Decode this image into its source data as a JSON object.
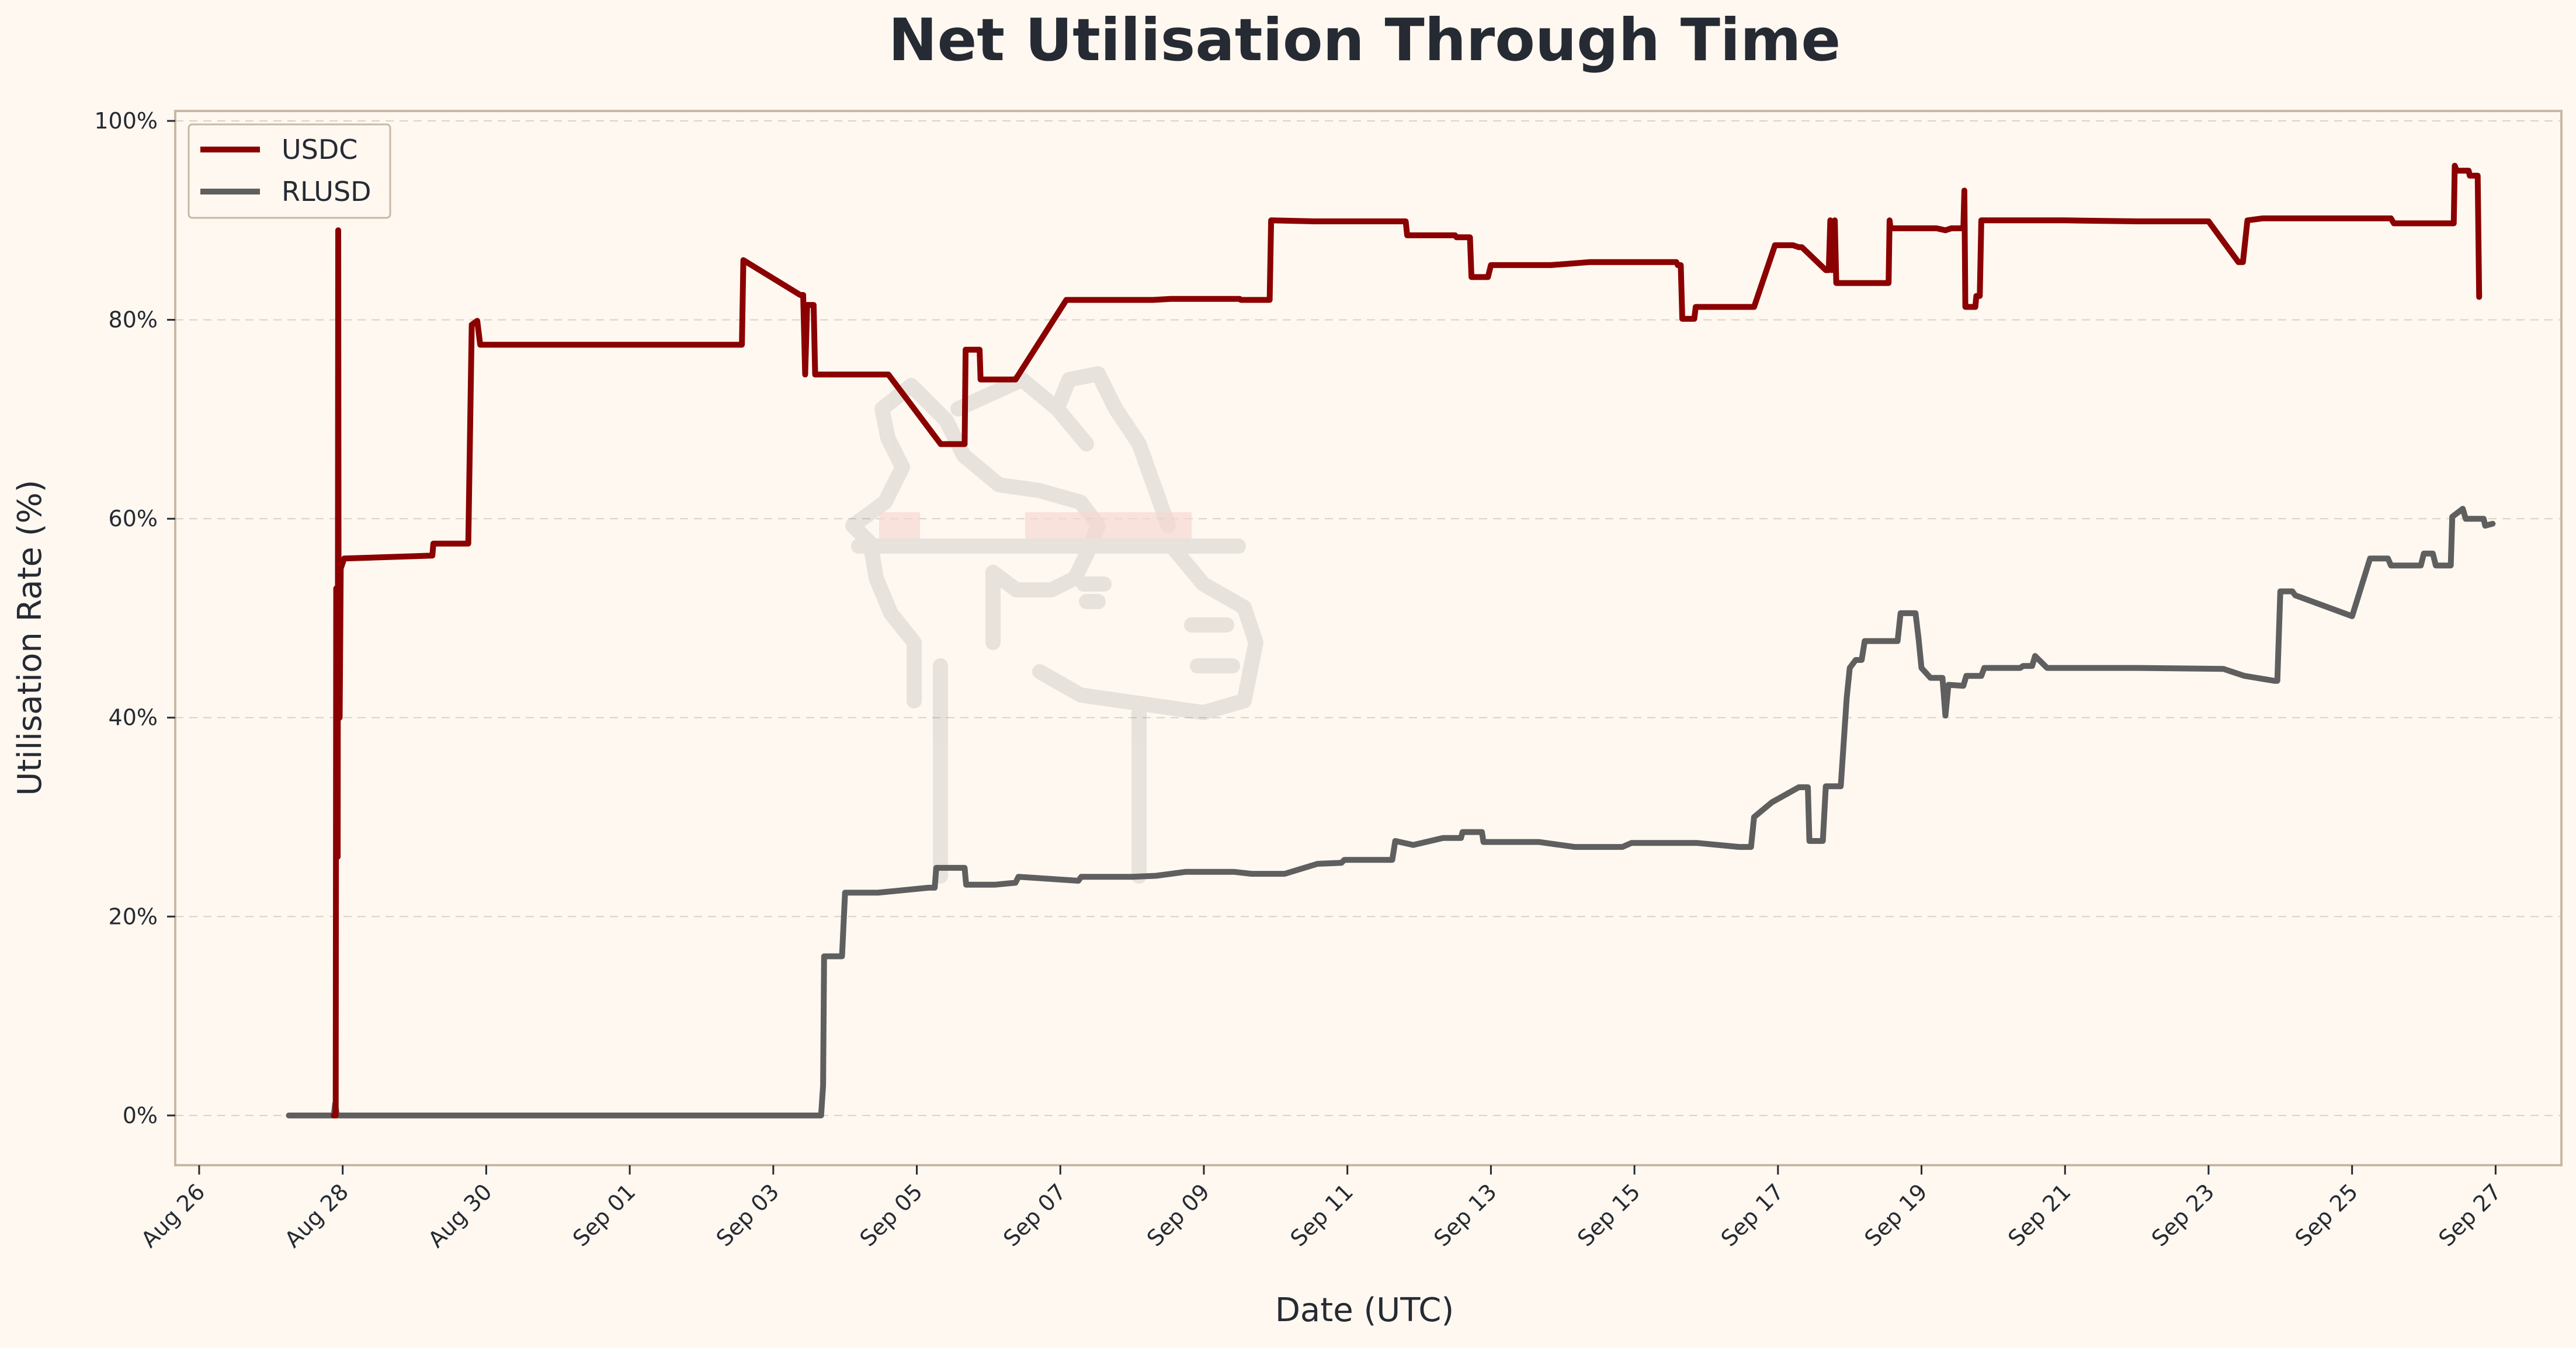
{
  "chart_data": {
    "type": "line",
    "title": "Net Utilisation Through Time",
    "xlabel": "Date (UTC)",
    "ylabel": "Utilisation Rate (%)",
    "ylim": [
      -5,
      101
    ],
    "xlim": [
      "2025-08-25T16:00",
      "2025-09-27T22:00"
    ],
    "x_ticks": [
      "Aug 26",
      "Aug 28",
      "Aug 30",
      "Sep 01",
      "Sep 03",
      "Sep 05",
      "Sep 07",
      "Sep 09",
      "Sep 11",
      "Sep 13",
      "Sep 15",
      "Sep 17",
      "Sep 19",
      "Sep 21",
      "Sep 23",
      "Sep 25",
      "Sep 27"
    ],
    "y_ticks": [
      "0%",
      "20%",
      "40%",
      "60%",
      "80%",
      "100%"
    ],
    "grid": "horizontal dashed",
    "legend_position": "top-left",
    "colors": {
      "background": "#FEF8F0",
      "frame": "#c8b8a4"
    },
    "series": [
      {
        "name": "USDC",
        "color": "#8B0000",
        "points": [
          [
            "2025-08-27T21:00",
            0
          ],
          [
            "2025-08-27T21:40",
            0
          ],
          [
            "2025-08-27T21:50",
            53
          ],
          [
            "2025-08-27T22:00",
            52
          ],
          [
            "2025-08-27T22:10",
            27
          ],
          [
            "2025-08-27T22:20",
            26
          ],
          [
            "2025-08-27T22:30",
            89
          ],
          [
            "2025-08-27T22:40",
            40
          ],
          [
            "2025-08-27T23:00",
            40
          ],
          [
            "2025-08-27T23:20",
            55
          ],
          [
            "2025-08-28T00:30",
            56
          ],
          [
            "2025-08-29T06:00",
            56.3
          ],
          [
            "2025-08-29T06:20",
            57.5
          ],
          [
            "2025-08-29T18:00",
            57.5
          ],
          [
            "2025-08-29T19:10",
            79.5
          ],
          [
            "2025-08-29T21:00",
            79.9
          ],
          [
            "2025-08-29T22:00",
            77.5
          ],
          [
            "2025-09-02T13:30",
            77.5
          ],
          [
            "2025-09-02T14:00",
            86
          ],
          [
            "2025-09-03T09:00",
            82.5
          ],
          [
            "2025-09-03T10:00",
            82.5
          ],
          [
            "2025-09-03T10:40",
            74.5
          ],
          [
            "2025-09-03T11:20",
            81.5
          ],
          [
            "2025-09-03T13:30",
            81.5
          ],
          [
            "2025-09-03T14:00",
            74.5
          ],
          [
            "2025-09-04T14:30",
            74.5
          ],
          [
            "2025-09-05T08:00",
            67.5
          ],
          [
            "2025-09-05T16:00",
            67.5
          ],
          [
            "2025-09-05T16:20",
            77
          ],
          [
            "2025-09-05T21:00",
            77
          ],
          [
            "2025-09-05T21:20",
            74
          ],
          [
            "2025-09-06T09:00",
            74
          ],
          [
            "2025-09-07T02:00",
            82
          ],
          [
            "2025-09-08T07:00",
            82
          ],
          [
            "2025-09-08T13:00",
            82.1
          ],
          [
            "2025-09-09T12:00",
            82.1
          ],
          [
            "2025-09-09T12:20",
            82
          ],
          [
            "2025-09-09T22:00",
            82
          ],
          [
            "2025-09-09T22:30",
            90
          ],
          [
            "2025-09-10T13:00",
            89.9
          ],
          [
            "2025-09-11T19:30",
            89.9
          ],
          [
            "2025-09-11T20:00",
            88.5
          ],
          [
            "2025-09-12T12:00",
            88.5
          ],
          [
            "2025-09-12T12:30",
            88.3
          ],
          [
            "2025-09-12T17:00",
            88.3
          ],
          [
            "2025-09-12T17:30",
            84.3
          ],
          [
            "2025-09-12T23:00",
            84.3
          ],
          [
            "2025-09-13T00:00",
            85.5
          ],
          [
            "2025-09-13T20:00",
            85.5
          ],
          [
            "2025-09-14T09:00",
            85.8
          ],
          [
            "2025-09-15T14:00",
            85.8
          ],
          [
            "2025-09-15T14:30",
            85.5
          ],
          [
            "2025-09-15T15:30",
            85.5
          ],
          [
            "2025-09-15T16:00",
            80.1
          ],
          [
            "2025-09-15T20:00",
            80.1
          ],
          [
            "2025-09-15T20:30",
            81.3
          ],
          [
            "2025-09-16T16:00",
            81.3
          ],
          [
            "2025-09-16T23:00",
            87.5
          ],
          [
            "2025-09-17T05:00",
            87.5
          ],
          [
            "2025-09-17T07:00",
            87.3
          ],
          [
            "2025-09-17T08:00",
            87.3
          ],
          [
            "2025-09-17T16:00",
            85
          ],
          [
            "2025-09-17T17:00",
            85
          ],
          [
            "2025-09-17T17:30",
            90
          ],
          [
            "2025-09-17T18:00",
            85
          ],
          [
            "2025-09-17T19:00",
            90
          ],
          [
            "2025-09-17T19:30",
            83.7
          ],
          [
            "2025-09-18T13:00",
            83.7
          ],
          [
            "2025-09-18T13:20",
            90
          ],
          [
            "2025-09-18T13:40",
            89.2
          ],
          [
            "2025-09-19T05:00",
            89.2
          ],
          [
            "2025-09-19T08:00",
            89
          ],
          [
            "2025-09-19T10:00",
            89.2
          ],
          [
            "2025-09-19T14:00",
            89.2
          ],
          [
            "2025-09-19T14:20",
            93
          ],
          [
            "2025-09-19T14:40",
            81.3
          ],
          [
            "2025-09-19T18:00",
            81.3
          ],
          [
            "2025-09-19T18:20",
            82.4
          ],
          [
            "2025-09-19T19:30",
            82.4
          ],
          [
            "2025-09-19T20:00",
            90
          ],
          [
            "2025-09-21T00:00",
            90
          ],
          [
            "2025-09-22T00:00",
            89.9
          ],
          [
            "2025-09-22T16:00",
            89.9
          ],
          [
            "2025-09-23T00:00",
            89.9
          ],
          [
            "2025-09-23T10:00",
            85.8
          ],
          [
            "2025-09-23T11:30",
            85.8
          ],
          [
            "2025-09-23T13:00",
            90
          ],
          [
            "2025-09-23T18:00",
            90.2
          ],
          [
            "2025-09-25T13:00",
            90.2
          ],
          [
            "2025-09-25T14:00",
            89.7
          ],
          [
            "2025-09-26T10:00",
            89.7
          ],
          [
            "2025-09-26T10:20",
            95.5
          ],
          [
            "2025-09-26T11:00",
            95
          ],
          [
            "2025-09-26T15:00",
            95
          ],
          [
            "2025-09-26T15:20",
            94.5
          ],
          [
            "2025-09-26T18:00",
            94.5
          ],
          [
            "2025-09-26T18:30",
            82.3
          ]
        ]
      },
      {
        "name": "RLUSD",
        "color": "#5f5f5f",
        "points": [
          [
            "2025-08-27T06:00",
            0
          ],
          [
            "2025-08-27T21:00",
            0
          ],
          [
            "2025-08-27T21:30",
            1.2
          ],
          [
            "2025-08-27T22:00",
            0
          ],
          [
            "2025-09-03T16:00",
            0
          ],
          [
            "2025-09-03T16:40",
            3
          ],
          [
            "2025-09-03T17:00",
            16
          ],
          [
            "2025-09-03T23:00",
            16
          ],
          [
            "2025-09-04T00:00",
            22.4
          ],
          [
            "2025-09-04T11:00",
            22.4
          ],
          [
            "2025-09-05T04:00",
            22.9
          ],
          [
            "2025-09-05T06:00",
            22.9
          ],
          [
            "2025-09-05T06:30",
            24.9
          ],
          [
            "2025-09-05T16:00",
            24.9
          ],
          [
            "2025-09-05T16:30",
            23.2
          ],
          [
            "2025-09-06T02:00",
            23.2
          ],
          [
            "2025-09-06T09:00",
            23.4
          ],
          [
            "2025-09-06T10:00",
            24
          ],
          [
            "2025-09-07T06:00",
            23.6
          ],
          [
            "2025-09-07T07:00",
            24
          ],
          [
            "2025-09-08T00:00",
            24
          ],
          [
            "2025-09-08T08:00",
            24.1
          ],
          [
            "2025-09-08T18:00",
            24.5
          ],
          [
            "2025-09-09T10:00",
            24.5
          ],
          [
            "2025-09-09T16:00",
            24.3
          ],
          [
            "2025-09-10T03:00",
            24.3
          ],
          [
            "2025-09-10T14:00",
            25.3
          ],
          [
            "2025-09-10T22:00",
            25.4
          ],
          [
            "2025-09-10T23:00",
            25.7
          ],
          [
            "2025-09-11T15:00",
            25.7
          ],
          [
            "2025-09-11T16:00",
            27.6
          ],
          [
            "2025-09-11T22:00",
            27.2
          ],
          [
            "2025-09-12T08:00",
            27.9
          ],
          [
            "2025-09-12T14:00",
            27.9
          ],
          [
            "2025-09-12T14:30",
            28.5
          ],
          [
            "2025-09-12T21:00",
            28.5
          ],
          [
            "2025-09-12T21:30",
            27.5
          ],
          [
            "2025-09-13T16:00",
            27.5
          ],
          [
            "2025-09-14T04:00",
            27
          ],
          [
            "2025-09-14T20:00",
            27
          ],
          [
            "2025-09-14T23:00",
            27.4
          ],
          [
            "2025-09-15T21:00",
            27.4
          ],
          [
            "2025-09-16T11:00",
            27
          ],
          [
            "2025-09-16T13:00",
            27
          ],
          [
            "2025-09-16T15:00",
            27
          ],
          [
            "2025-09-16T16:00",
            30
          ],
          [
            "2025-09-16T22:00",
            31.5
          ],
          [
            "2025-09-17T07:00",
            33
          ],
          [
            "2025-09-17T10:00",
            33
          ],
          [
            "2025-09-17T10:30",
            27.6
          ],
          [
            "2025-09-17T15:00",
            27.6
          ],
          [
            "2025-09-17T16:00",
            33.1
          ],
          [
            "2025-09-17T21:00",
            33.1
          ],
          [
            "2025-09-17T23:00",
            42
          ],
          [
            "2025-09-18T00:00",
            45
          ],
          [
            "2025-09-18T02:00",
            45.8
          ],
          [
            "2025-09-18T04:00",
            45.8
          ],
          [
            "2025-09-18T05:00",
            47.7
          ],
          [
            "2025-09-18T16:00",
            47.7
          ],
          [
            "2025-09-18T17:00",
            50.5
          ],
          [
            "2025-09-18T22:00",
            50.5
          ],
          [
            "2025-09-18T23:00",
            48
          ],
          [
            "2025-09-19T00:00",
            45
          ],
          [
            "2025-09-19T03:00",
            44
          ],
          [
            "2025-09-19T07:00",
            44
          ],
          [
            "2025-09-19T08:00",
            40.2
          ],
          [
            "2025-09-19T09:00",
            43.3
          ],
          [
            "2025-09-19T14:00",
            43.2
          ],
          [
            "2025-09-19T15:00",
            44.2
          ],
          [
            "2025-09-19T20:00",
            44.2
          ],
          [
            "2025-09-19T21:00",
            45
          ],
          [
            "2025-09-20T09:00",
            45
          ],
          [
            "2025-09-20T10:00",
            45.2
          ],
          [
            "2025-09-20T13:00",
            45.2
          ],
          [
            "2025-09-20T14:00",
            46.2
          ],
          [
            "2025-09-20T18:00",
            45
          ],
          [
            "2025-09-21T00:00",
            45
          ],
          [
            "2025-09-22T00:00",
            45
          ],
          [
            "2025-09-23T05:00",
            44.9
          ],
          [
            "2025-09-23T12:00",
            44.2
          ],
          [
            "2025-09-23T22:00",
            43.7
          ],
          [
            "2025-09-23T23:00",
            43.7
          ],
          [
            "2025-09-24T00:00",
            52.7
          ],
          [
            "2025-09-24T04:00",
            52.7
          ],
          [
            "2025-09-24T05:00",
            52.3
          ],
          [
            "2025-09-25T00:00",
            50.2
          ],
          [
            "2025-09-25T06:00",
            56
          ],
          [
            "2025-09-25T12:00",
            56
          ],
          [
            "2025-09-25T13:00",
            55.3
          ],
          [
            "2025-09-25T23:00",
            55.3
          ],
          [
            "2025-09-26T00:00",
            56.5
          ],
          [
            "2025-09-26T03:00",
            56.5
          ],
          [
            "2025-09-26T04:00",
            55.3
          ],
          [
            "2025-09-26T09:00",
            55.3
          ],
          [
            "2025-09-26T09:30",
            60.2
          ],
          [
            "2025-09-26T13:00",
            61
          ],
          [
            "2025-09-26T14:00",
            60
          ],
          [
            "2025-09-26T20:00",
            60
          ],
          [
            "2025-09-26T20:30",
            59.3
          ],
          [
            "2025-09-26T23:00",
            59.5
          ]
        ]
      }
    ]
  }
}
